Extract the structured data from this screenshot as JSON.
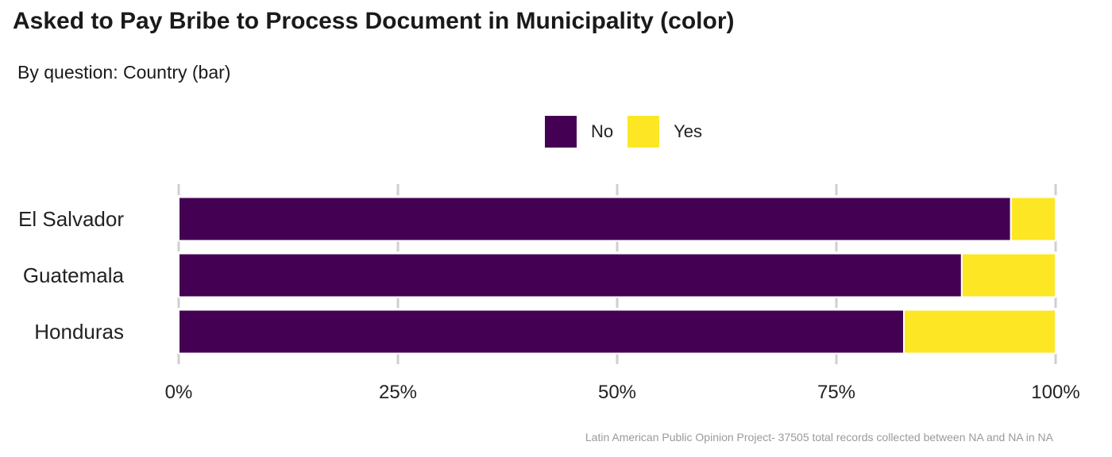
{
  "title": "Asked to Pay Bribe to Process Document in Municipality (color)",
  "subtitle": "By question: Country (bar)",
  "caption": "Latin American Public Opinion Project- 37505 total records collected between NA and NA in  NA",
  "legend": [
    {
      "label": "No",
      "color": "#440154"
    },
    {
      "label": "Yes",
      "color": "#FDE725"
    }
  ],
  "chart_data": {
    "type": "bar",
    "orientation": "horizontal",
    "stacked": true,
    "percent": true,
    "title": "Asked to Pay Bribe to Process Document in Municipality (color)",
    "subtitle": "By question: Country (bar)",
    "categories": [
      "El Salvador",
      "Guatemala",
      "Honduras"
    ],
    "series": [
      {
        "name": "No",
        "color": "#440154",
        "values": [
          94.9,
          89.3,
          82.7
        ]
      },
      {
        "name": "Yes",
        "color": "#FDE725",
        "values": [
          5.1,
          10.7,
          17.3
        ]
      }
    ],
    "xlim": [
      0,
      100
    ],
    "x_ticks": [
      "0%",
      "25%",
      "50%",
      "75%",
      "100%"
    ],
    "x_tick_values": [
      0,
      25,
      50,
      75,
      100
    ],
    "grid": true,
    "legend_position": "top"
  }
}
